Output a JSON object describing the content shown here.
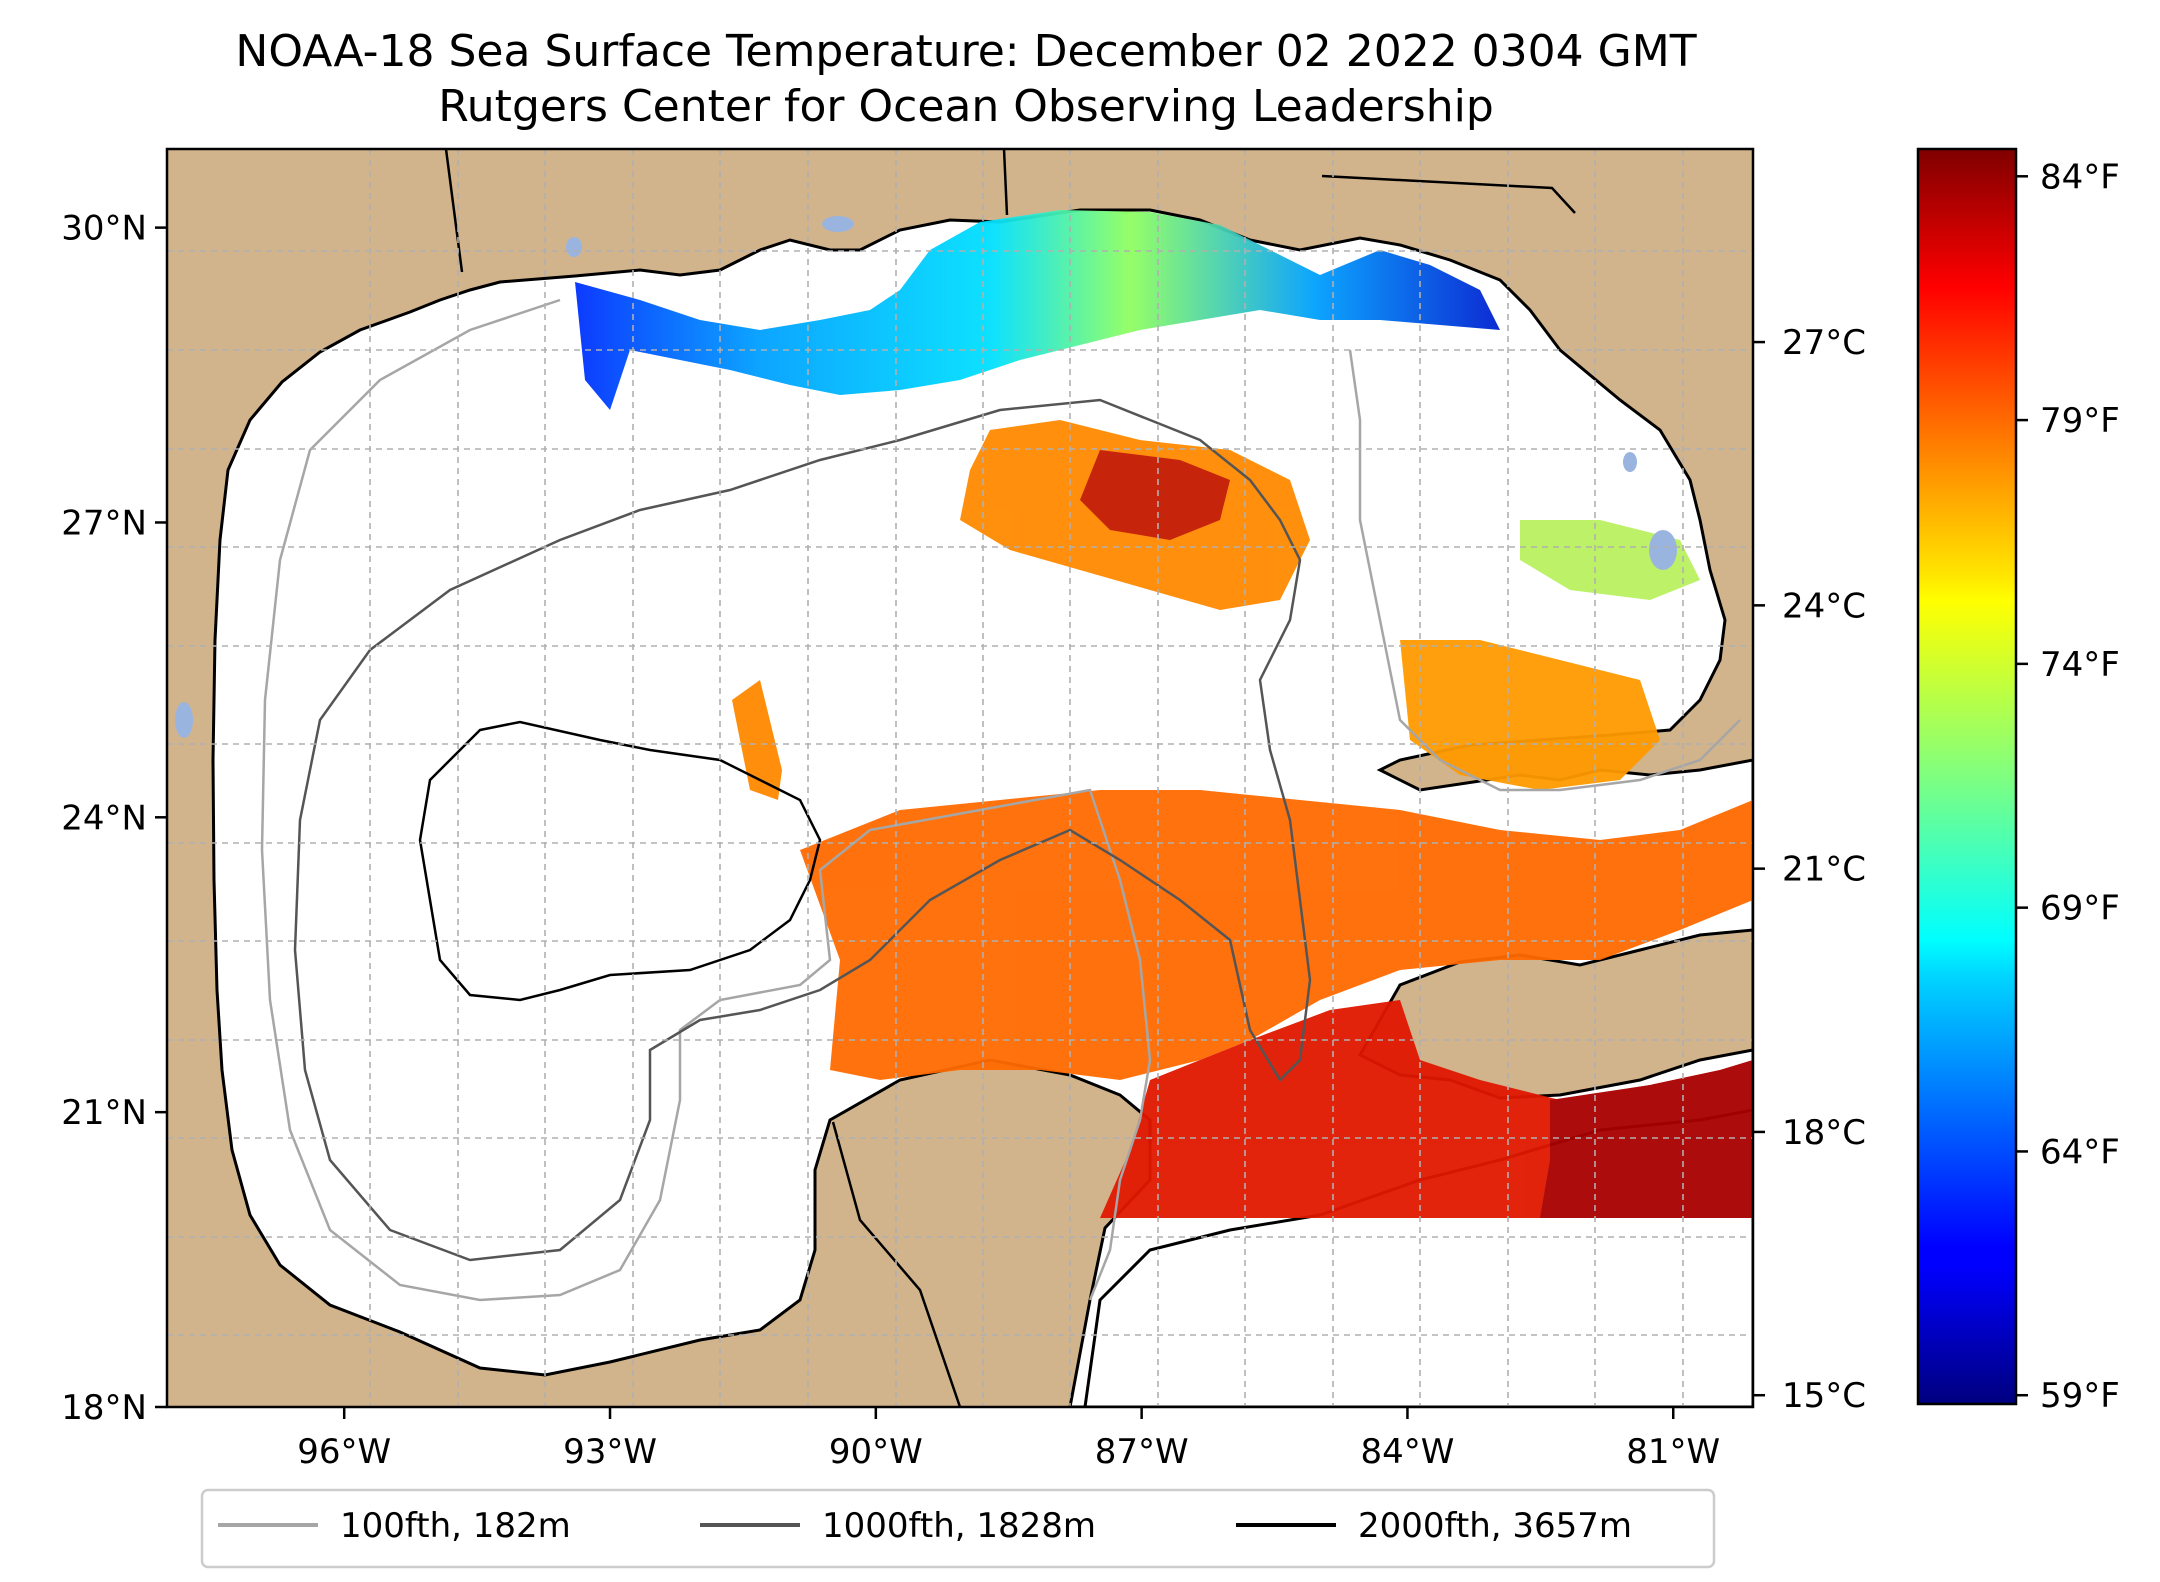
{
  "title": {
    "line1": "NOAA-18 Sea Surface Temperature: December 02 2022 0304 GMT",
    "line2": "Rutgers Center for Ocean Observing Leadership"
  },
  "map": {
    "lon_range": [
      -98,
      -80.1
    ],
    "lat_range": [
      18,
      30.8
    ],
    "lon_ticks": [
      {
        "value": -96,
        "label": "96°W"
      },
      {
        "value": -93,
        "label": "93°W"
      },
      {
        "value": -90,
        "label": "90°W"
      },
      {
        "value": -87,
        "label": "87°W"
      },
      {
        "value": -84,
        "label": "84°W"
      },
      {
        "value": -81,
        "label": "81°W"
      }
    ],
    "lat_ticks": [
      {
        "value": 30,
        "label": "30°N"
      },
      {
        "value": 27,
        "label": "27°N"
      },
      {
        "value": 24,
        "label": "24°N"
      },
      {
        "value": 21,
        "label": "21°N"
      },
      {
        "value": 18,
        "label": "18°N"
      }
    ],
    "grid": true,
    "colors": {
      "land": "#d2b48c",
      "ocean": "#ffffff",
      "lake": "#9ab4e0",
      "grid": "#b0b0b0"
    }
  },
  "colorbar": {
    "colormap": "jet",
    "celsius_ticks": [
      {
        "value": 27,
        "label": "27°C"
      },
      {
        "value": 24,
        "label": "24°C"
      },
      {
        "value": 21,
        "label": "21°C"
      },
      {
        "value": 18,
        "label": "18°C"
      },
      {
        "value": 15,
        "label": "15°C"
      }
    ],
    "fahrenheit_ticks": [
      {
        "value": 84,
        "label": "84°F"
      },
      {
        "value": 79,
        "label": "79°F"
      },
      {
        "value": 74,
        "label": "74°F"
      },
      {
        "value": 69,
        "label": "69°F"
      },
      {
        "value": 64,
        "label": "64°F"
      },
      {
        "value": 59,
        "label": "59°F"
      }
    ]
  },
  "legend": {
    "placement": "bottom",
    "items": [
      {
        "label": "100fth, 182m",
        "color": "#a6a6a6"
      },
      {
        "label": "1000fth, 1828m",
        "color": "#555555"
      },
      {
        "label": "2000fth, 3657m",
        "color": "#000000"
      }
    ]
  }
}
